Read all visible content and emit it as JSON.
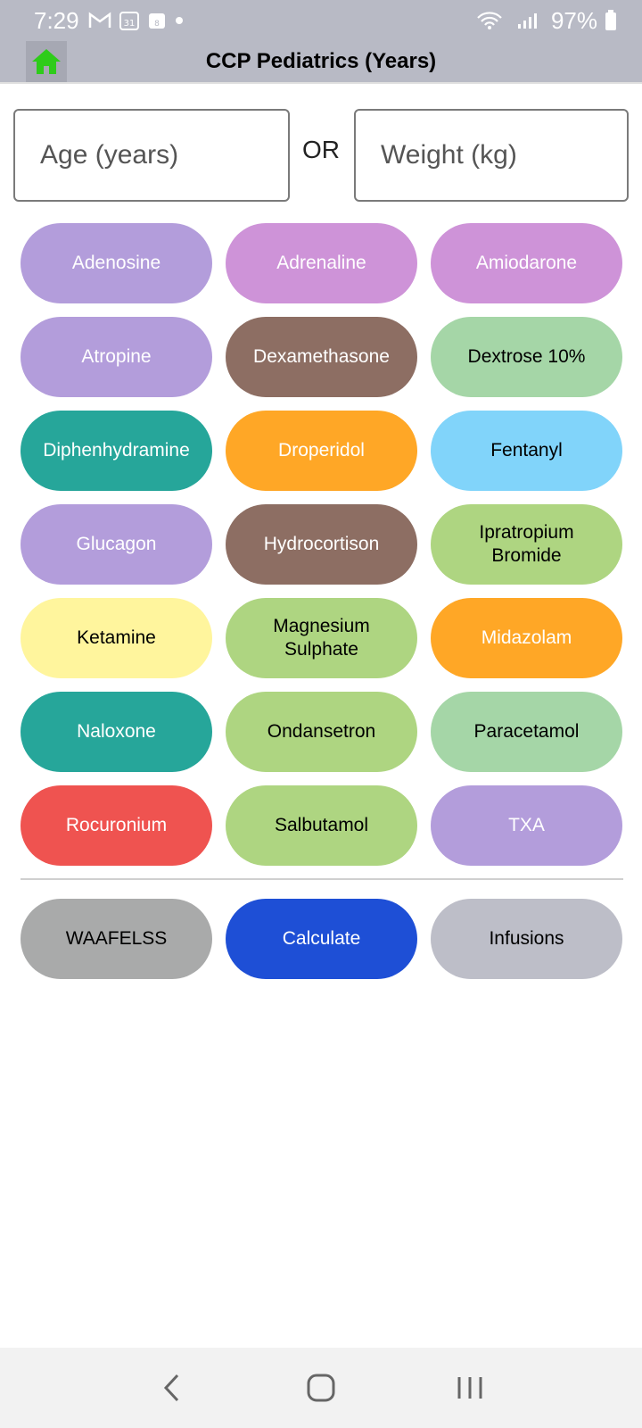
{
  "status": {
    "time": "7:29",
    "battery": "97%",
    "notification_icons": [
      "gmail-icon",
      "calendar-icon",
      "calendar-small-icon",
      "dot-icon"
    ]
  },
  "app_bar": {
    "title": "CCP Pediatrics (Years)"
  },
  "inputs": {
    "age_placeholder": "Age (years)",
    "or_label": "OR",
    "weight_placeholder": "Weight (kg)"
  },
  "drugs": [
    {
      "label": "Adenosine",
      "bg": "#b39ddb",
      "fg": "#ffffff"
    },
    {
      "label": "Adrenaline",
      "bg": "#ce93d8",
      "fg": "#ffffff"
    },
    {
      "label": "Amiodarone",
      "bg": "#ce93d8",
      "fg": "#ffffff"
    },
    {
      "label": "Atropine",
      "bg": "#b39ddb",
      "fg": "#ffffff"
    },
    {
      "label": "Dexamethasone",
      "bg": "#8d6e63",
      "fg": "#ffffff"
    },
    {
      "label": "Dextrose 10%",
      "bg": "#a5d6a7",
      "fg": "#000000"
    },
    {
      "label": "Diphenhydramine",
      "bg": "#26a69a",
      "fg": "#ffffff"
    },
    {
      "label": "Droperidol",
      "bg": "#ffa726",
      "fg": "#ffffff"
    },
    {
      "label": "Fentanyl",
      "bg": "#81d4fa",
      "fg": "#000000"
    },
    {
      "label": "Glucagon",
      "bg": "#b39ddb",
      "fg": "#ffffff"
    },
    {
      "label": "Hydrocortison",
      "bg": "#8d6e63",
      "fg": "#ffffff"
    },
    {
      "label": "Ipratropium\nBromide",
      "bg": "#aed581",
      "fg": "#000000"
    },
    {
      "label": "Ketamine",
      "bg": "#fff59d",
      "fg": "#000000"
    },
    {
      "label": "Magnesium\nSulphate",
      "bg": "#aed581",
      "fg": "#000000"
    },
    {
      "label": "Midazolam",
      "bg": "#ffa726",
      "fg": "#ffffff"
    },
    {
      "label": "Naloxone",
      "bg": "#26a69a",
      "fg": "#ffffff"
    },
    {
      "label": "Ondansetron",
      "bg": "#aed581",
      "fg": "#000000"
    },
    {
      "label": "Paracetamol",
      "bg": "#a5d6a7",
      "fg": "#000000"
    },
    {
      "label": "Rocuronium",
      "bg": "#ef5350",
      "fg": "#ffffff"
    },
    {
      "label": "Salbutamol",
      "bg": "#aed581",
      "fg": "#000000"
    },
    {
      "label": "TXA",
      "bg": "#b39ddb",
      "fg": "#ffffff"
    }
  ],
  "actions": [
    {
      "label": "WAAFELSS",
      "bg": "#a9aaaa",
      "fg": "#000000"
    },
    {
      "label": "Calculate",
      "bg": "#1e4fd6",
      "fg": "#ffffff"
    },
    {
      "label": "Infusions",
      "bg": "#bdbec8",
      "fg": "#000000"
    }
  ],
  "colors": {
    "home_icon": "#2ecc1a",
    "app_bar": "#b8bac5"
  }
}
